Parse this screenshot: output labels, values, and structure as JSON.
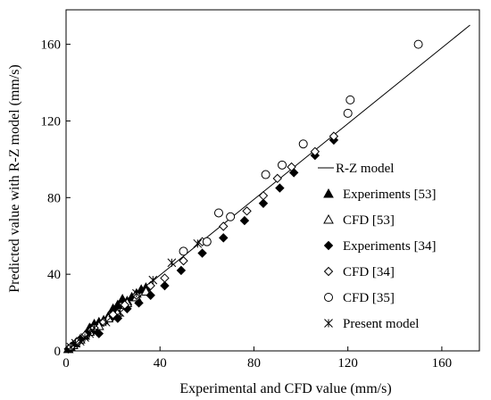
{
  "chart_data": {
    "type": "scatter",
    "title": "",
    "xlabel": "Experimental  and  CFD value (mm/s)",
    "ylabel": "Predicted value with R-Z model (mm/s)",
    "xlim": [
      0,
      176
    ],
    "ylim": [
      0,
      178
    ],
    "xticks": [
      0,
      40,
      80,
      120,
      160
    ],
    "yticks": [
      0,
      40,
      80,
      120,
      160
    ],
    "grid": false,
    "legend_position": "bottom-right",
    "reference_line": {
      "name": "R-Z model",
      "x": [
        0,
        172
      ],
      "y": [
        0,
        170
      ]
    },
    "series": [
      {
        "name": "Experiments [53]",
        "marker": "triangle-filled",
        "points": [
          [
            1,
            1
          ],
          [
            2,
            2
          ],
          [
            3,
            3
          ],
          [
            4,
            4
          ],
          [
            6,
            6
          ],
          [
            8,
            8
          ],
          [
            10,
            12
          ],
          [
            12,
            14
          ],
          [
            14,
            15
          ],
          [
            16,
            16
          ],
          [
            18,
            18
          ],
          [
            20,
            22
          ],
          [
            22,
            24
          ],
          [
            24,
            27
          ],
          [
            26,
            26
          ],
          [
            28,
            28
          ],
          [
            30,
            30
          ],
          [
            32,
            32
          ],
          [
            34,
            33
          ]
        ]
      },
      {
        "name": "CFD [53]",
        "marker": "triangle-open",
        "points": [
          [
            3,
            3
          ],
          [
            6,
            6
          ],
          [
            10,
            10
          ],
          [
            14,
            13
          ],
          [
            18,
            17
          ],
          [
            22,
            20
          ],
          [
            26,
            25
          ],
          [
            30,
            28
          ],
          [
            34,
            31
          ]
        ]
      },
      {
        "name": "Experiments [34]",
        "marker": "diamond-filled",
        "points": [
          [
            1,
            1
          ],
          [
            3,
            3
          ],
          [
            6,
            6
          ],
          [
            9,
            9
          ],
          [
            12,
            11
          ],
          [
            14,
            9
          ],
          [
            16,
            15
          ],
          [
            20,
            18
          ],
          [
            22,
            17
          ],
          [
            26,
            22
          ],
          [
            31,
            25
          ],
          [
            36,
            29
          ],
          [
            42,
            34
          ],
          [
            49,
            42
          ],
          [
            58,
            51
          ],
          [
            67,
            59
          ],
          [
            76,
            68
          ],
          [
            84,
            77
          ],
          [
            91,
            85
          ],
          [
            97,
            93
          ],
          [
            106,
            102
          ],
          [
            114,
            110
          ]
        ]
      },
      {
        "name": "CFD [34]",
        "marker": "diamond-open",
        "points": [
          [
            2,
            2
          ],
          [
            5,
            5
          ],
          [
            8,
            8
          ],
          [
            12,
            12
          ],
          [
            16,
            15
          ],
          [
            20,
            19
          ],
          [
            25,
            24
          ],
          [
            30,
            29
          ],
          [
            36,
            34
          ],
          [
            42,
            38
          ],
          [
            50,
            47
          ],
          [
            58,
            57
          ],
          [
            67,
            65
          ],
          [
            77,
            73
          ],
          [
            84,
            81
          ],
          [
            90,
            90
          ],
          [
            96,
            96
          ],
          [
            106,
            104
          ],
          [
            114,
            112
          ]
        ]
      },
      {
        "name": "CFD [35]",
        "marker": "circle-open",
        "points": [
          [
            50,
            52
          ],
          [
            60,
            57
          ],
          [
            65,
            72
          ],
          [
            70,
            70
          ],
          [
            85,
            92
          ],
          [
            92,
            97
          ],
          [
            101,
            108
          ],
          [
            120,
            124
          ],
          [
            121,
            131
          ],
          [
            150,
            160
          ]
        ]
      },
      {
        "name": "Present model",
        "marker": "asterisk",
        "points": [
          [
            2,
            2
          ],
          [
            4,
            4
          ],
          [
            6,
            5
          ],
          [
            8,
            7
          ],
          [
            10,
            9
          ],
          [
            12,
            12
          ],
          [
            17,
            15
          ],
          [
            23,
            20
          ],
          [
            30,
            30
          ],
          [
            37,
            37
          ],
          [
            45,
            46
          ],
          [
            56,
            56
          ]
        ]
      }
    ]
  }
}
